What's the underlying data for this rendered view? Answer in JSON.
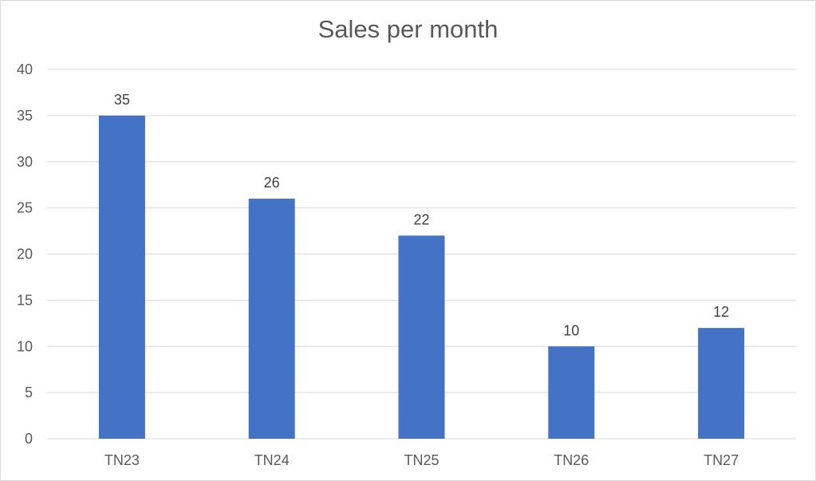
{
  "chart_data": {
    "type": "bar",
    "title": "Sales per month",
    "categories": [
      "TN23",
      "TN24",
      "TN25",
      "TN26",
      "TN27"
    ],
    "values": [
      35,
      26,
      22,
      10,
      12
    ],
    "xlabel": "",
    "ylabel": "",
    "ylim": [
      0,
      40
    ],
    "yticks": [
      0,
      5,
      10,
      15,
      20,
      25,
      30,
      35,
      40
    ],
    "grid": true,
    "legend": "none",
    "data_labels": true,
    "colors": {
      "bar": "#4472c4",
      "grid": "#d9d9d9",
      "text": "#595959"
    }
  }
}
